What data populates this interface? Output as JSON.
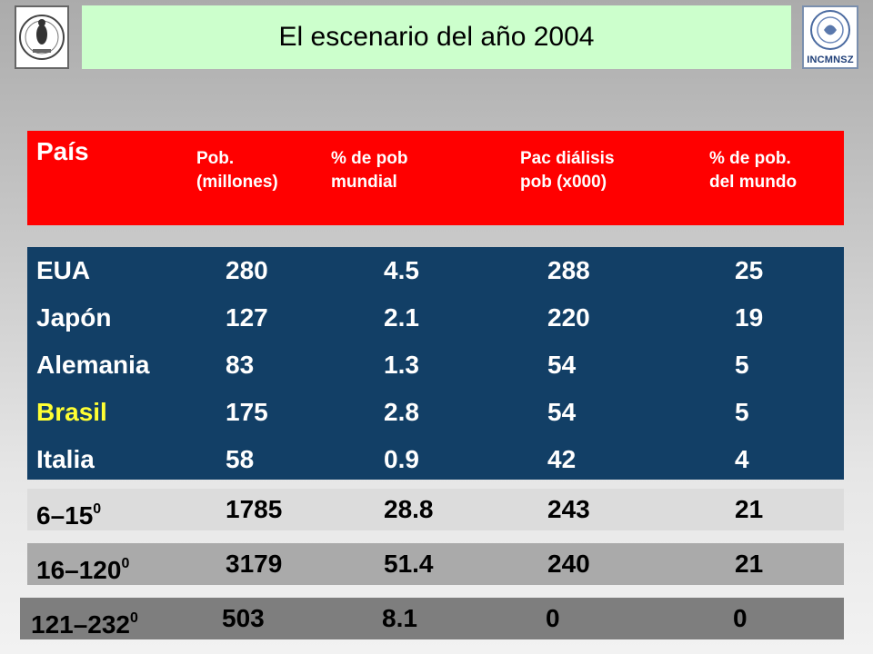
{
  "title": "El escenario del año 2004",
  "logos": {
    "left_icon": "university-seal-icon",
    "right_label": "INCMNSZ"
  },
  "header": {
    "pais": "País",
    "pob": [
      "Pob.",
      "(millones)"
    ],
    "pct_mundial": [
      "% de pob",
      "mundial"
    ],
    "dialisis": [
      "Pac diálisis",
      "pob (x000)"
    ],
    "pct_mundo": [
      "% de pob.",
      "del mundo"
    ]
  },
  "rows": [
    {
      "pais": "EUA",
      "pob": "280",
      "pct": "4.5",
      "dial": "288",
      "pct_mundo": "25"
    },
    {
      "pais": "Japón",
      "pob": "127",
      "pct": "2.1",
      "dial": "220",
      "pct_mundo": "19"
    },
    {
      "pais": "Alemania",
      "pob": "83",
      "pct": "1.3",
      "dial": "54",
      "pct_mundo": "5"
    },
    {
      "pais": "Brasil",
      "pob": "175",
      "pct": "2.8",
      "dial": "54",
      "pct_mundo": "5"
    },
    {
      "pais": "Italia",
      "pob": "58",
      "pct": "0.9",
      "dial": "42",
      "pct_mundo": "4"
    }
  ],
  "summary": [
    {
      "label": "6–15",
      "sup": "0",
      "pob": "1785",
      "pct": "28.8",
      "dial": "243",
      "pct_mundo": "21"
    },
    {
      "label": "16–120",
      "sup": "0",
      "pob": "3179",
      "pct": "51.4",
      "dial": "240",
      "pct_mundo": "21"
    },
    {
      "label": "121–232",
      "sup": "0",
      "pob": "503",
      "pct": "8.1",
      "dial": "0",
      "pct_mundo": "0"
    }
  ],
  "colors": {
    "header_bg": "#ff0000",
    "main_bg": "#123f66",
    "highlight_text": "#ffff33",
    "title_bg": "#ccffcc"
  }
}
